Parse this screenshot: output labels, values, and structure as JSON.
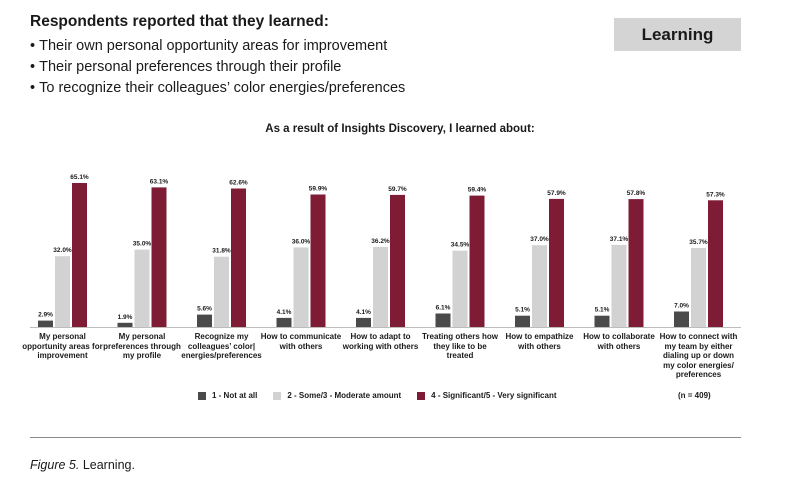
{
  "header": {
    "title": "Respondents reported that they learned:",
    "bullets": [
      "Their own personal opportunity areas for improvement",
      "Their personal preferences through their profile",
      "To recognize their colleagues’ color energies/preferences"
    ],
    "badge": "Learning"
  },
  "caption": {
    "label": "Figure 5.",
    "text": " Learning."
  },
  "chart_data": {
    "type": "bar",
    "title": "As a result of Insights Discovery, I learned about:",
    "categories": [
      "My personal opportunity areas for improvement",
      "My personal preferences through my profile",
      "Recognize my colleagues’ color| energies/preferences",
      "How to communicate with others",
      "How to adapt to working with others",
      "Treating others how they like to be treated",
      "How to empathize with others",
      "How to collaborate with others",
      "How to connect with my team by either dialing up or down my color energies/ preferences"
    ],
    "series": [
      {
        "name": "1 - Not at all",
        "color": "#4a4a4a",
        "values": [
          2.9,
          1.9,
          5.6,
          4.1,
          4.1,
          6.1,
          5.1,
          5.1,
          7.0
        ]
      },
      {
        "name": "2 - Some/3 - Moderate amount",
        "color": "#d3d2d2",
        "values": [
          32.0,
          35.0,
          31.8,
          36.0,
          36.2,
          34.5,
          37.0,
          37.1,
          35.7
        ]
      },
      {
        "name": "4 - Significant/5 - Very significant",
        "color": "#7d1c34",
        "values": [
          65.1,
          63.1,
          62.6,
          59.9,
          59.7,
          59.4,
          57.9,
          57.8,
          57.3
        ]
      }
    ],
    "value_suffix": "%",
    "ylim": [
      0,
      65.1
    ],
    "grid": false,
    "legend_position": "bottom",
    "note": "(n = 409)"
  }
}
